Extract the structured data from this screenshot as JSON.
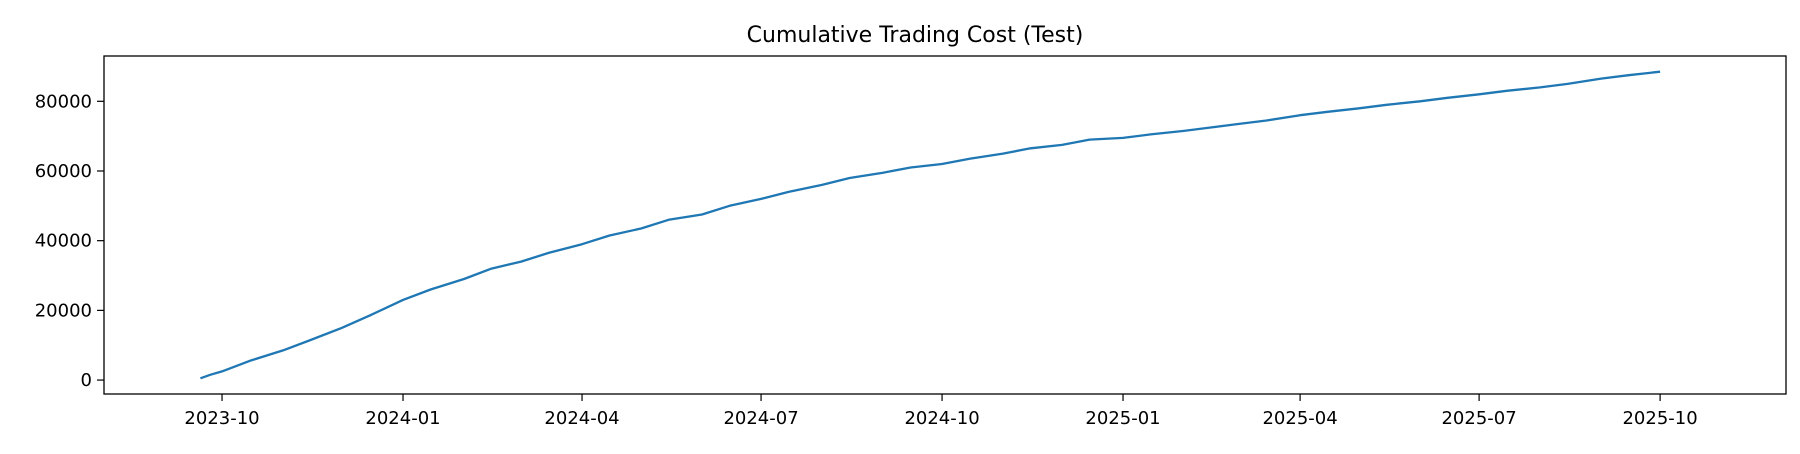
{
  "chart_data": {
    "type": "line",
    "title": "Cumulative Trading Cost (Test)",
    "xlabel": "",
    "ylabel": "",
    "xlim": [
      "2023-08-02",
      "2025-12-04"
    ],
    "ylim": [
      -4000,
      93000
    ],
    "grid": false,
    "legend": "none",
    "x_ticks": [
      "2023-10",
      "2024-01",
      "2024-04",
      "2024-07",
      "2024-10",
      "2025-01",
      "2025-04",
      "2025-07",
      "2025-10"
    ],
    "y_ticks": [
      0,
      20000,
      40000,
      60000,
      80000
    ],
    "line_color": "#1f77b4",
    "series": [
      {
        "x": [
          "2023-09-20",
          "2023-09-25",
          "2023-10-01",
          "2023-10-15",
          "2023-11-01",
          "2023-11-15",
          "2023-12-01",
          "2023-12-15",
          "2024-01-01",
          "2024-01-15",
          "2024-02-01",
          "2024-02-15",
          "2024-03-01",
          "2024-03-15",
          "2024-04-01",
          "2024-04-15",
          "2024-05-01",
          "2024-05-15",
          "2024-06-01",
          "2024-06-15",
          "2024-07-01",
          "2024-07-15",
          "2024-08-01",
          "2024-08-15",
          "2024-09-01",
          "2024-09-15",
          "2024-10-01",
          "2024-10-15",
          "2024-11-01",
          "2024-11-15",
          "2024-12-01",
          "2024-12-15",
          "2025-01-01",
          "2025-01-15",
          "2025-02-01",
          "2025-02-15",
          "2025-03-01",
          "2025-03-15",
          "2025-04-01",
          "2025-04-15",
          "2025-05-01",
          "2025-05-15",
          "2025-06-01",
          "2025-06-15",
          "2025-07-01",
          "2025-07-15",
          "2025-08-01",
          "2025-08-15",
          "2025-09-01",
          "2025-09-15",
          "2025-10-01"
        ],
        "values": [
          500,
          1500,
          2500,
          5500,
          8500,
          11500,
          15000,
          18500,
          23000,
          26000,
          29000,
          32000,
          34000,
          36500,
          39000,
          41500,
          43500,
          46000,
          47500,
          50000,
          52000,
          54000,
          56000,
          58000,
          59500,
          61000,
          62000,
          63500,
          65000,
          66500,
          67500,
          69000,
          69500,
          70500,
          71500,
          72500,
          73500,
          74500,
          76000,
          77000,
          78000,
          79000,
          80000,
          81000,
          82000,
          83000,
          84000,
          85000,
          86500,
          87500,
          88500
        ]
      }
    ]
  }
}
